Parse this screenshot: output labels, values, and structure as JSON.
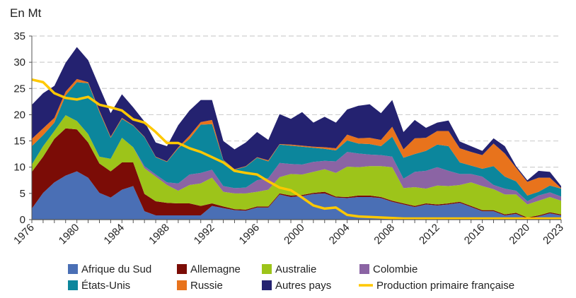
{
  "chart_data": {
    "type": "area",
    "stacked": true,
    "ylabel": "En Mt",
    "ylim": [
      0,
      35
    ],
    "yticks": [
      0,
      5,
      10,
      15,
      20,
      25,
      30,
      35
    ],
    "grid": "horizontal-dashed",
    "xtick_labels": [
      "1976",
      "1980",
      "1984",
      "1988",
      "1992",
      "1996",
      "2000",
      "2004",
      "2008",
      "2012",
      "2016",
      "2020",
      "2023"
    ],
    "legend_position": "bottom",
    "x": [
      1976,
      1977,
      1978,
      1979,
      1980,
      1981,
      1982,
      1983,
      1984,
      1985,
      1986,
      1987,
      1988,
      1989,
      1990,
      1991,
      1992,
      1993,
      1994,
      1995,
      1996,
      1997,
      1998,
      1999,
      2000,
      2001,
      2002,
      2003,
      2004,
      2005,
      2006,
      2007,
      2008,
      2009,
      2010,
      2011,
      2012,
      2013,
      2014,
      2015,
      2016,
      2017,
      2018,
      2019,
      2020,
      2021,
      2022,
      2023
    ],
    "series": [
      {
        "name": "Afrique du Sud",
        "color": "#4a6fb5",
        "values": [
          2.1,
          5.1,
          7.1,
          8.4,
          9.2,
          8.0,
          5.1,
          4.2,
          5.7,
          6.4,
          1.6,
          0.8,
          0.8,
          0.8,
          0.8,
          0.8,
          2.6,
          2.2,
          1.8,
          1.7,
          2.3,
          2.3,
          4.8,
          4.3,
          4.5,
          4.9,
          5.0,
          4.2,
          4.1,
          4.3,
          4.3,
          4.1,
          3.4,
          2.9,
          2.4,
          2.9,
          2.7,
          2.9,
          3.2,
          2.4,
          1.6,
          1.6,
          0.8,
          1.1,
          0.2,
          0.6,
          1.2,
          0.8
        ]
      },
      {
        "name": "Allemagne",
        "color": "#7b0c06",
        "values": [
          7.0,
          6.9,
          8.3,
          9.0,
          8.0,
          6.7,
          5.6,
          5.0,
          5.2,
          4.5,
          3.3,
          2.7,
          2.4,
          2.3,
          2.3,
          1.8,
          0.5,
          0.3,
          0.2,
          0.2,
          0.2,
          0.2,
          0.2,
          0.3,
          0.2,
          0.2,
          0.3,
          0.2,
          0.2,
          0.3,
          0.3,
          0.2,
          0.2,
          0.2,
          0.2,
          0.2,
          0.2,
          0.2,
          0.2,
          0.2,
          0.2,
          0.2,
          0.2,
          0.2,
          0.2,
          0.2,
          0.2,
          0.2
        ]
      },
      {
        "name": "Australie",
        "color": "#9dc41a",
        "values": [
          1.4,
          2.0,
          1.5,
          2.5,
          1.6,
          1.6,
          1.3,
          2.4,
          4.7,
          2.9,
          4.9,
          4.7,
          3.4,
          2.4,
          3.5,
          4.3,
          4.9,
          2.8,
          3.0,
          3.1,
          2.8,
          3.2,
          3.1,
          4.1,
          3.9,
          4.0,
          4.3,
          4.5,
          5.8,
          5.4,
          5.6,
          5.9,
          6.4,
          2.9,
          3.6,
          2.8,
          3.6,
          3.3,
          3.2,
          4.5,
          4.6,
          4.0,
          3.8,
          3.5,
          2.5,
          2.8,
          2.9,
          2.6
        ]
      },
      {
        "name": "Colombie",
        "color": "#8b64a4",
        "values": [
          0,
          0,
          0,
          0,
          0,
          0,
          0,
          0,
          0,
          0,
          0.4,
          0.4,
          0.5,
          1.4,
          2.0,
          2.0,
          1.5,
          1.1,
          1.0,
          1.1,
          2.2,
          2.2,
          2.7,
          1.9,
          1.9,
          1.9,
          1.6,
          2.2,
          2.8,
          2.6,
          2.2,
          2.1,
          2.0,
          1.8,
          2.9,
          3.4,
          3.5,
          2.9,
          2.1,
          1.6,
          1.8,
          0.8,
          1.1,
          0.7,
          0.6,
          1.0,
          0.9,
          0.8
        ]
      },
      {
        "name": "États-Unis",
        "color": "#0c869c",
        "values": [
          3.5,
          2.1,
          1.6,
          3.8,
          7.4,
          9.7,
          8.5,
          4.0,
          3.6,
          4.1,
          5.5,
          3.3,
          3.9,
          6.7,
          6.8,
          9.2,
          8.7,
          4.9,
          3.5,
          4.0,
          4.3,
          3.2,
          3.5,
          3.5,
          3.4,
          2.7,
          2.3,
          2.1,
          2.2,
          1.9,
          2.0,
          1.7,
          3.8,
          4.0,
          3.4,
          3.8,
          4.3,
          4.7,
          2.2,
          1.6,
          1.5,
          3.6,
          2.3,
          1.8,
          1.1,
          0.7,
          1.3,
          1.5
        ]
      },
      {
        "name": "Russie",
        "color": "#e8731c",
        "values": [
          1.4,
          1.3,
          0.9,
          0.7,
          0.6,
          0.2,
          0.3,
          0.2,
          0.2,
          0.1,
          0.1,
          0.1,
          0.1,
          0.2,
          0.6,
          0.5,
          0.8,
          0.1,
          0.1,
          0.1,
          0.1,
          0.2,
          0.1,
          0.2,
          0.2,
          0.2,
          0.3,
          0.4,
          1.1,
          1.0,
          1.2,
          1.2,
          1.9,
          1.6,
          3.0,
          2.5,
          2.6,
          2.9,
          2.7,
          2.6,
          2.6,
          4.3,
          4.4,
          2.6,
          2.6,
          2.7,
          1.5,
          0.1
        ]
      },
      {
        "name": "Autres pays",
        "color": "#242270",
        "values": [
          6.5,
          6.7,
          6.1,
          5.5,
          6.1,
          4.2,
          4.5,
          4.5,
          4.5,
          3.4,
          2.9,
          2.7,
          2.9,
          4.2,
          4.8,
          4.2,
          3.8,
          3.6,
          3.8,
          4.5,
          4.8,
          3.9,
          5.7,
          4.9,
          6.4,
          4.6,
          5.8,
          4.9,
          4.8,
          6.2,
          6.4,
          5.1,
          5.1,
          3.3,
          3.5,
          1.9,
          1.6,
          2.0,
          1.3,
          1.1,
          0.8,
          1.0,
          1.4,
          0.3,
          0.3,
          1.3,
          1.1,
          0.4
        ]
      }
    ],
    "line": {
      "name": "Production primaire française",
      "color": "#ffc800",
      "values": [
        26.7,
        26.2,
        24.1,
        23.2,
        22.9,
        23.4,
        21.9,
        21.4,
        20.8,
        19.1,
        18.5,
        16.7,
        14.6,
        14.6,
        13.6,
        12.9,
        11.9,
        10.9,
        9.3,
        8.9,
        8.6,
        7.3,
        6.1,
        5.6,
        4.2,
        2.7,
        2.1,
        2.3,
        0.9,
        0.6,
        0.5,
        0.4,
        0.3,
        0.2,
        0.1,
        0.2,
        0.2,
        0.2,
        0.2,
        0.1,
        0,
        0,
        0,
        0,
        0,
        0,
        0,
        0
      ]
    },
    "legend_order": [
      0,
      1,
      2,
      3,
      4,
      5,
      6,
      "line"
    ]
  }
}
